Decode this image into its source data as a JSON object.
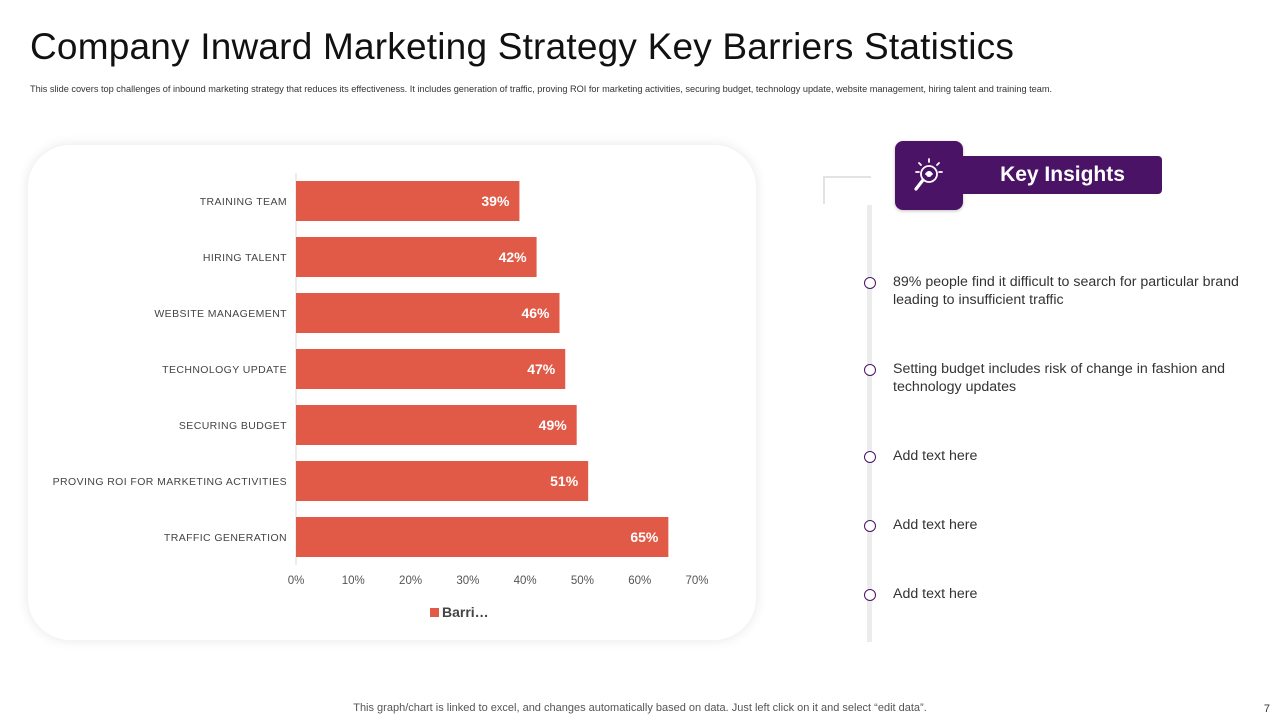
{
  "slide": {
    "title": "Company Inward Marketing Strategy Key Barriers Statistics",
    "subtitle": "This slide covers top challenges of inbound marketing strategy that reduces its effectiveness. It includes generation of traffic, proving ROI for marketing activities, securing budget, technology update, website management, hiring talent and training team.",
    "footer_note": "This graph/chart is linked to excel, and changes automatically based on data. Just left click on it and select “edit data”.",
    "page_number": "7"
  },
  "colors": {
    "bar": "#e05a47",
    "accent_purple": "#4a1366"
  },
  "chart_data": {
    "type": "bar",
    "orientation": "horizontal",
    "categories": [
      "TRAINING TEAM",
      "HIRING TALENT",
      "WEBSITE MANAGEMENT",
      "TECHNOLOGY UPDATE",
      "SECURING BUDGET",
      "PROVING ROI FOR MARKETING ACTIVITIES",
      "TRAFFIC GENERATION"
    ],
    "series": [
      {
        "name": "Barri…",
        "values": [
          39,
          42,
          46,
          47,
          49,
          51,
          65
        ]
      }
    ],
    "value_labels": [
      "39%",
      "42%",
      "46%",
      "47%",
      "49%",
      "51%",
      "65%"
    ],
    "xlim": [
      0,
      70
    ],
    "x_ticks": [
      "0%",
      "10%",
      "20%",
      "30%",
      "40%",
      "50%",
      "60%",
      "70%"
    ],
    "xlabel": "",
    "ylabel": "",
    "grid": false,
    "legend_position": "bottom"
  },
  "insights": {
    "heading": "Key Insights",
    "icon": "lightbulb-magnifier-icon",
    "items": [
      "89% people find it difficult to search for particular brand leading to insufficient traffic",
      "Setting budget includes risk of change in fashion and technology updates",
      "Add text here",
      "Add text here",
      "Add text here"
    ]
  }
}
